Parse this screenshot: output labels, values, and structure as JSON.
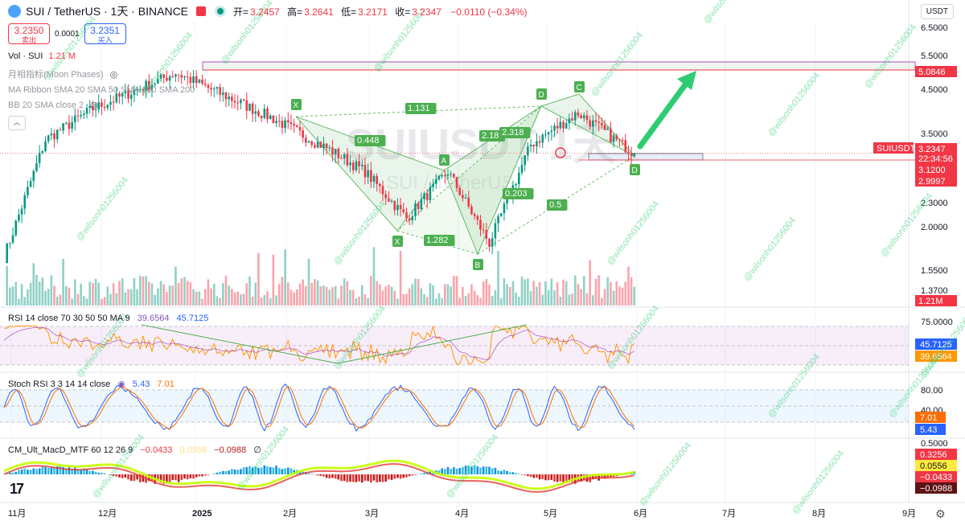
{
  "header": {
    "symbol": "SUI / TetherUS · 1天 · BINANCE",
    "ohlc": [
      {
        "label": "开=",
        "value": "3.2457"
      },
      {
        "label": "高=",
        "value": "3.2641"
      },
      {
        "label": "低=",
        "value": "3.2171"
      },
      {
        "label": "收=",
        "value": "3.2347"
      }
    ],
    "change": "−0.0110 (−0.34%)"
  },
  "trade": {
    "sell_price": "3.2350",
    "sell_label": "卖出",
    "spread": "0.0001",
    "buy_price": "3.2351",
    "buy_label": "买入"
  },
  "currency": "USDT",
  "legends": {
    "vol": {
      "name": "Vol · SUI",
      "value": "1.21 M"
    },
    "moon": "月相指标(Moon Phases)",
    "ribbon": "MA Ribbon SMA 20 SMA 50 SMA 100 SMA 200",
    "bb": "BB 20 SMA close 2",
    "rsi": {
      "name": "RSI 14 close 70 30 50 50 MA 9",
      "v1": "39.6564",
      "v2": "45.7125"
    },
    "stoch": {
      "name": "Stoch RSI 3 3 14 14 close",
      "v1": "5.43",
      "v2": "7.01"
    },
    "macd": {
      "name": "CM_Ult_MacD_MTF 60 12 26 9",
      "v1": "−0.0433",
      "v2": "0.0556",
      "v3": "−0.0988",
      "v4": "∅"
    }
  },
  "watermark": {
    "big": "SUIUSDT 1天",
    "sub": "SUI / TetherUS",
    "handle": "@wilsonh01256004"
  },
  "colors": {
    "up": "#089981",
    "down": "#f23645",
    "accent": "#2962ff",
    "rsi_line": "#7e57c2",
    "rsi_ma": "#ff9800",
    "stoch_k": "#2962ff",
    "stoch_d": "#ff6d00"
  },
  "chart_data": [
    {
      "type": "candlestick",
      "title": "SUI / TetherUS · 1天 · BINANCE",
      "y_scale": "log",
      "y_ticks": [
        "6.5000",
        "5.5000",
        "4.5000",
        "3.5000",
        "2.3000",
        "2.0000",
        "1.5500",
        "1.3700"
      ],
      "x_ticks": [
        "11月",
        "12月",
        "2025",
        "2月",
        "3月",
        "4月",
        "5月",
        "6月",
        "7月",
        "8月",
        "9月"
      ],
      "ohlc_anchor_path": [
        {
          "t": "11月",
          "close": 1.75
        },
        {
          "t": "11月中",
          "close": 3.5
        },
        {
          "t": "12月",
          "close": 4.2
        },
        {
          "t": "1月初",
          "close": 5.2
        },
        {
          "t": "2月",
          "close": 4.0
        },
        {
          "t": "2月中",
          "close": 3.3
        },
        {
          "t": "3月",
          "close": 2.9
        },
        {
          "t": "3月中",
          "close": 2.2
        },
        {
          "t": "4月初",
          "close": 2.9
        },
        {
          "t": "4月中",
          "close": 1.9
        },
        {
          "t": "4月末",
          "close": 3.4
        },
        {
          "t": "5月中",
          "close": 4.1
        },
        {
          "t": "5月末",
          "close": 3.23
        }
      ],
      "price_labels": [
        {
          "value": "5.0846",
          "style": "red"
        },
        {
          "value": "SUIUSDT",
          "style": "red"
        },
        {
          "value": "3.2347",
          "style": "red"
        },
        {
          "value": "22:34:56",
          "style": "red"
        },
        {
          "value": "3.1200",
          "style": "red"
        },
        {
          "value": "2.9997",
          "style": "red"
        },
        {
          "value": "1.21M",
          "style": "red"
        }
      ],
      "pattern_points": [
        {
          "label": "X",
          "price": 3.9
        },
        {
          "label": "X",
          "price": 1.95
        },
        {
          "label": "A",
          "price": 2.9
        },
        {
          "label": "B",
          "price": 1.7
        },
        {
          "label": "D",
          "price": 4.6
        },
        {
          "label": "C",
          "price": 4.6
        },
        {
          "label": "D",
          "price": 2.95
        }
      ],
      "ratios": [
        "1.131",
        "0.448",
        "1.282",
        "2.18",
        "2.318",
        "0.203",
        "0.5"
      ]
    },
    {
      "type": "line",
      "title": "RSI 14 close 70 30 50 50 MA 9",
      "y_ticks": [
        "75.0000"
      ],
      "last_values": [
        "45.7125",
        "39.6564"
      ]
    },
    {
      "type": "line",
      "title": "Stoch RSI 3 3 14 14 close",
      "y_ticks": [
        "80.00",
        "40.00"
      ],
      "last_values": [
        "7.01",
        "5.43"
      ]
    },
    {
      "type": "bar",
      "title": "CM_Ult_MacD_MTF 60 12 26 9",
      "y_ticks": [
        "0.5000"
      ],
      "last_values": [
        "0.3256",
        "0.0556",
        "−0.0433",
        "−0.0988"
      ]
    }
  ]
}
